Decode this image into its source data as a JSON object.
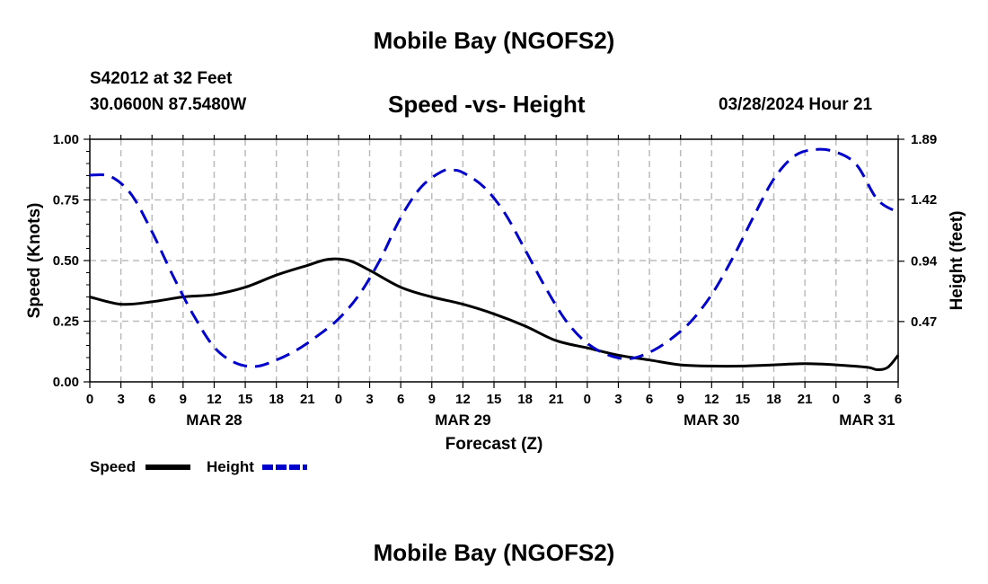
{
  "header": {
    "title": "Mobile Bay (NGOFS2)",
    "station": "S42012 at 32 Feet",
    "coordinates": "30.0600N  87.5480W",
    "subtitle": "Speed -vs- Height",
    "datetime": "03/28/2024 Hour 21"
  },
  "footer": {
    "title": "Mobile Bay (NGOFS2)"
  },
  "colors": {
    "speed": "#000000",
    "height": "#0000cc",
    "grid": "#bbbbbb"
  },
  "chart_data": {
    "type": "line",
    "title": "Speed -vs- Height",
    "xlabel": "Forecast (Z)",
    "ylabel": "Speed (Knots)",
    "y2label": "Height (feet)",
    "x_unit": "hours from MAR 28 00Z",
    "xlim": [
      0,
      78
    ],
    "x_ticks": [
      0,
      3,
      6,
      9,
      12,
      15,
      18,
      21,
      24,
      27,
      30,
      33,
      36,
      39,
      42,
      45,
      48,
      51,
      54,
      57,
      60,
      63,
      66,
      69,
      72,
      75,
      78
    ],
    "x_tick_labels": [
      "0",
      "3",
      "6",
      "9",
      "12",
      "15",
      "18",
      "21",
      "0",
      "3",
      "6",
      "9",
      "12",
      "15",
      "18",
      "21",
      "0",
      "3",
      "6",
      "9",
      "12",
      "15",
      "18",
      "21",
      "0",
      "3",
      "6"
    ],
    "date_labels": [
      {
        "x": 12,
        "label": "MAR 28"
      },
      {
        "x": 36,
        "label": "MAR 29"
      },
      {
        "x": 60,
        "label": "MAR 30"
      },
      {
        "x": 75,
        "label": "MAR 31"
      }
    ],
    "ylim": [
      0,
      1.0
    ],
    "y_ticks": [
      0,
      0.25,
      0.5,
      0.75,
      1.0
    ],
    "y_tick_labels": [
      "0.00",
      "0.25",
      "0.50",
      "0.75",
      "1.00"
    ],
    "y2lim": [
      0.0,
      1.89
    ],
    "y2_ticks": [
      0.47,
      0.94,
      1.42,
      1.89
    ],
    "y2_tick_labels": [
      "0.47",
      "0.94",
      "1.42",
      "1.89"
    ],
    "grid": true,
    "legend_position": "bottom-left",
    "series": [
      {
        "name": "Speed",
        "axis": "left",
        "style": "solid",
        "x": [
          0,
          3,
          6,
          9,
          12,
          15,
          18,
          21,
          23,
          25,
          27,
          30,
          33,
          36,
          39,
          42,
          45,
          48,
          51,
          54,
          57,
          60,
          63,
          66,
          69,
          72,
          75,
          76,
          77,
          78
        ],
        "y": [
          0.35,
          0.32,
          0.33,
          0.35,
          0.36,
          0.39,
          0.44,
          0.48,
          0.505,
          0.5,
          0.46,
          0.39,
          0.35,
          0.32,
          0.28,
          0.23,
          0.17,
          0.14,
          0.11,
          0.09,
          0.07,
          0.065,
          0.065,
          0.07,
          0.075,
          0.07,
          0.06,
          0.05,
          0.06,
          0.11
        ]
      },
      {
        "name": "Height",
        "axis": "right",
        "style": "dashed",
        "x": [
          0,
          2,
          4,
          6,
          8,
          10,
          12,
          14,
          16,
          18,
          20,
          22,
          24,
          26,
          28,
          30,
          32,
          34,
          35,
          36,
          38,
          40,
          42,
          44,
          46,
          48,
          50,
          52,
          54,
          56,
          58,
          60,
          62,
          64,
          66,
          68,
          70,
          72,
          74,
          76,
          78
        ],
        "y": [
          1.61,
          1.6,
          1.46,
          1.17,
          0.83,
          0.52,
          0.27,
          0.15,
          0.12,
          0.17,
          0.25,
          0.36,
          0.49,
          0.68,
          0.95,
          1.28,
          1.52,
          1.64,
          1.65,
          1.63,
          1.52,
          1.32,
          1.03,
          0.73,
          0.47,
          0.3,
          0.21,
          0.18,
          0.23,
          0.33,
          0.47,
          0.68,
          0.96,
          1.28,
          1.58,
          1.76,
          1.81,
          1.79,
          1.69,
          1.42,
          1.32
        ]
      }
    ]
  }
}
